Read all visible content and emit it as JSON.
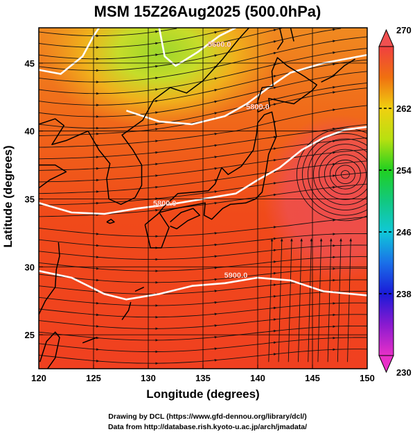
{
  "title": "MSM 15Z26Aug2025 (500.0hPa)",
  "axes": {
    "xlabel": "Longitude (degrees)",
    "ylabel": "Latitude  (degrees)",
    "xlim": [
      120,
      150
    ],
    "ylim": [
      22.5,
      47.6
    ],
    "xticks": [
      120,
      125,
      130,
      135,
      140,
      145,
      150
    ],
    "yticks": [
      25,
      30,
      35,
      40,
      45
    ]
  },
  "colorbar": {
    "min": 230,
    "max": 270,
    "labels": [
      230,
      238,
      246,
      254,
      262,
      270
    ]
  },
  "contours": [
    {
      "label": "5900.0",
      "level": 5900
    },
    {
      "label": "5800.0",
      "level": 5800
    },
    {
      "label": "5800.0",
      "level": 5800
    },
    {
      "label": "5600.0",
      "level": 5600
    }
  ],
  "credits": [
    "Drawing by DCL (https://www.gfd-dennou.org/library/dcl/)",
    "Data from http://database.rish.kyoto-u.ac.jp/arch/jmadata/"
  ]
}
